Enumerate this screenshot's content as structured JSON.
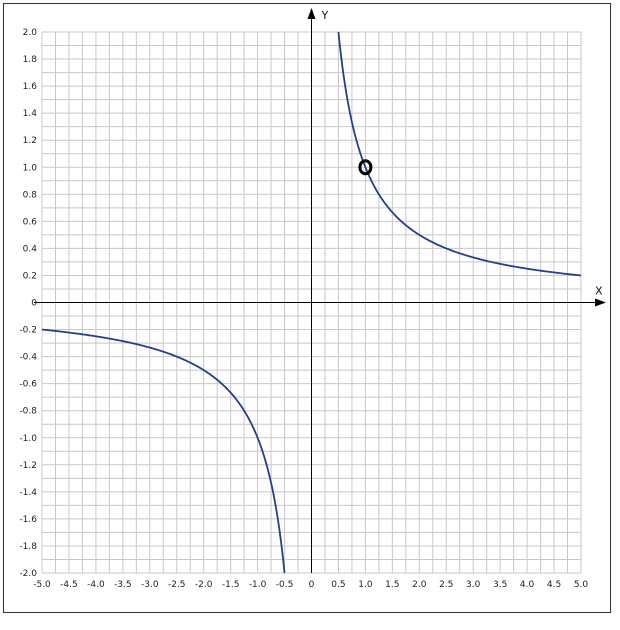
{
  "chart_data": {
    "type": "line",
    "title": "",
    "xlabel": "X",
    "ylabel": "Y",
    "xlim": [
      -5.0,
      5.0
    ],
    "ylim": [
      -2.0,
      2.0
    ],
    "grid": true,
    "x_gridline_step": 0.25,
    "y_gridline_step": 0.1,
    "x_ticks": [
      "-5.0",
      "-4.5",
      "-4.0",
      "-3.5",
      "-3.0",
      "-2.5",
      "-2.0",
      "-1.5",
      "-1.0",
      "-0.5",
      "0",
      "0.5",
      "1.0",
      "1.5",
      "2.0",
      "2.5",
      "3.0",
      "3.5",
      "4.0",
      "4.5",
      "5.0"
    ],
    "y_ticks": [
      "2.0",
      "1.8",
      "1.6",
      "1.4",
      "1.2",
      "1.0",
      "0.8",
      "0.6",
      "0.4",
      "0.2",
      "0",
      "-0.2",
      "-0.4",
      "-0.6",
      "-0.8",
      "-1.0",
      "-1.2",
      "-1.4",
      "-1.6",
      "-1.8",
      "-2.0"
    ],
    "series": [
      {
        "function": "y = 1/x",
        "color": "#23408e",
        "branches": [
          {
            "x_range": [
              0.5,
              5.0
            ]
          },
          {
            "x_range": [
              -5.0,
              -0.5
            ]
          }
        ]
      }
    ],
    "marker": {
      "x": 1.0,
      "y": 1.0,
      "color": "#000000"
    }
  }
}
